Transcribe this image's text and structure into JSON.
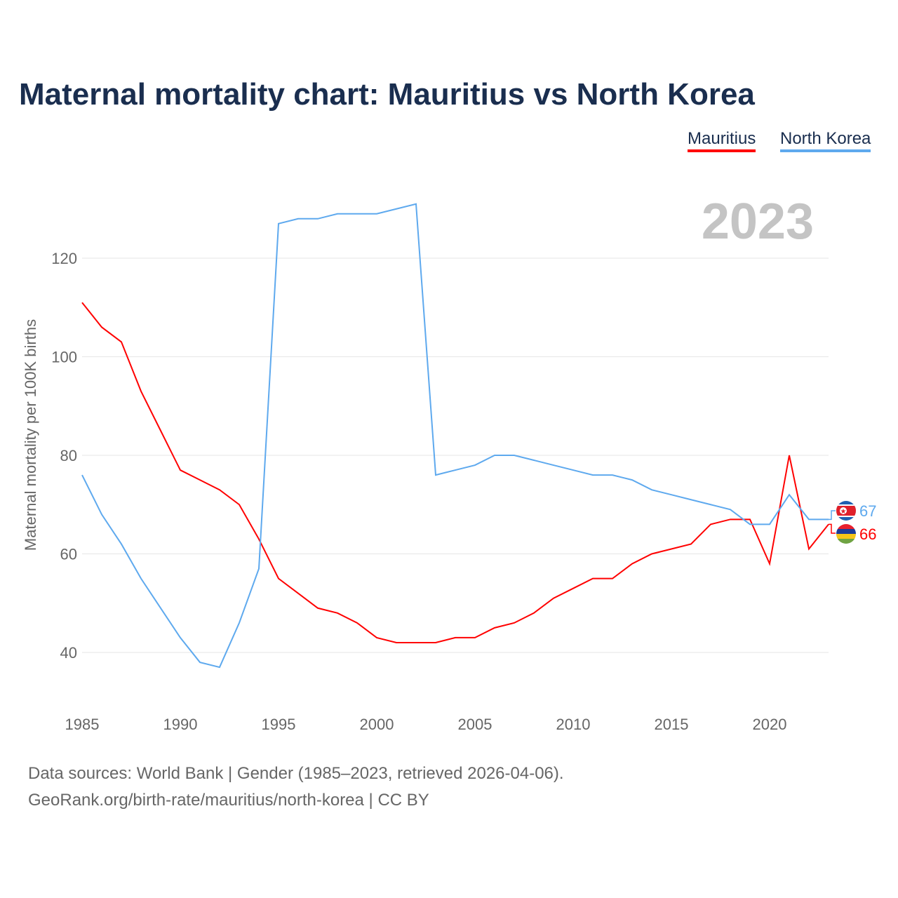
{
  "chart_data": {
    "type": "line",
    "title": "Maternal mortality chart: Mauritius vs North Korea",
    "ylabel": "Maternal mortality per 100K births",
    "xlabel": "",
    "year_label": "2023",
    "ylim": [
      30,
      132
    ],
    "xlim": [
      1985,
      2023
    ],
    "yticks": [
      40,
      60,
      80,
      100,
      120
    ],
    "xticks": [
      1985,
      1990,
      1995,
      2000,
      2005,
      2010,
      2015,
      2020
    ],
    "grid": true,
    "legend_position": "top-right",
    "x": [
      1985,
      1986,
      1987,
      1988,
      1989,
      1990,
      1991,
      1992,
      1993,
      1994,
      1995,
      1996,
      1997,
      1998,
      1999,
      2000,
      2001,
      2002,
      2003,
      2004,
      2005,
      2006,
      2007,
      2008,
      2009,
      2010,
      2011,
      2012,
      2013,
      2014,
      2015,
      2016,
      2017,
      2018,
      2019,
      2020,
      2021,
      2022,
      2023
    ],
    "series": [
      {
        "name": "Mauritius",
        "color": "#ff0000",
        "end_label": "66",
        "values": [
          111,
          106,
          103,
          93,
          85,
          77,
          75,
          73,
          70,
          63,
          55,
          52,
          49,
          48,
          46,
          43,
          42,
          42,
          42,
          43,
          43,
          45,
          46,
          48,
          51,
          53,
          55,
          55,
          58,
          60,
          61,
          62,
          66,
          67,
          67,
          58,
          80,
          61,
          66
        ]
      },
      {
        "name": "North Korea",
        "color": "#5ea9ee",
        "end_label": "67",
        "values": [
          76,
          68,
          62,
          55,
          49,
          43,
          38,
          37,
          46,
          57,
          127,
          128,
          128,
          129,
          129,
          129,
          130,
          131,
          76,
          77,
          78,
          80,
          80,
          79,
          78,
          77,
          76,
          76,
          75,
          73,
          72,
          71,
          70,
          69,
          66,
          66,
          72,
          67,
          67
        ]
      }
    ]
  },
  "footer": {
    "line1": "Data sources: World Bank | Gender (1985–2023, retrieved 2026-04-06).",
    "line2": "GeoRank.org/birth-rate/mauritius/north-korea | CC BY"
  }
}
